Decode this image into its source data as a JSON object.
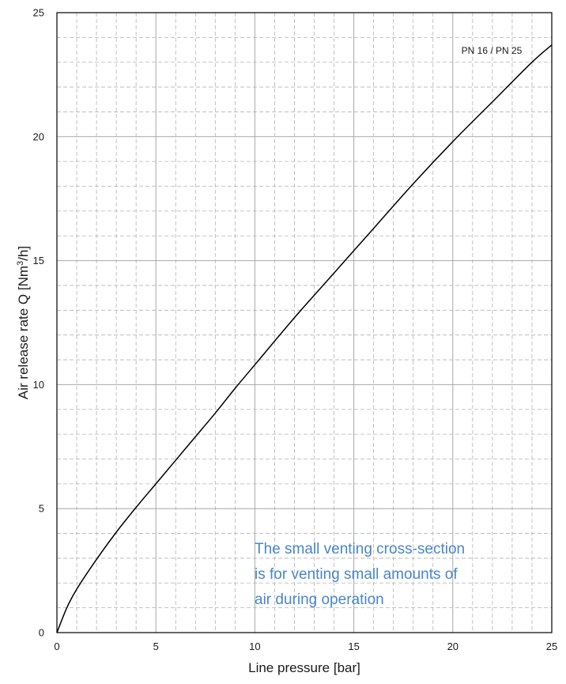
{
  "chart_data": {
    "type": "line",
    "title": "",
    "xlabel": "Line pressure [bar]",
    "ylabel_main": "Air release rate Q [Nm",
    "ylabel_sup": "3",
    "ylabel_tail": "/h]",
    "xlim": [
      0,
      25
    ],
    "ylim": [
      0,
      25
    ],
    "x_ticks": [
      0,
      5,
      10,
      15,
      20,
      25
    ],
    "y_ticks": [
      0,
      5,
      10,
      15,
      20,
      25
    ],
    "x_minor_step": 1,
    "y_minor_step": 1,
    "grid": true,
    "series": [
      {
        "name": "PN 16 / PN 25",
        "x": [
          0,
          0.5,
          1,
          2,
          3,
          4,
          5,
          6,
          7,
          8,
          9,
          10,
          12,
          14,
          16,
          18,
          20,
          22,
          24,
          25
        ],
        "y": [
          0,
          1.0,
          1.75,
          2.95,
          4.05,
          5.05,
          6.0,
          6.95,
          7.9,
          8.85,
          9.85,
          10.8,
          12.7,
          14.5,
          16.3,
          18.1,
          19.8,
          21.4,
          23.0,
          23.7
        ],
        "color": "#000000"
      }
    ],
    "annotation": {
      "lines": [
        "The small venting cross-section",
        "is for venting small amounts of",
        "air during operation"
      ],
      "color": "#4a86c8"
    }
  }
}
